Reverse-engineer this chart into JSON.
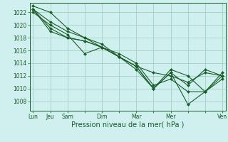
{
  "bg_color": "#cff0ee",
  "plot_bg_color": "#cff0ee",
  "grid_color": "#99ccbb",
  "line_color": "#1a5c2a",
  "marker_color": "#1a5c2a",
  "xlabel": "Pression niveau de la mer( hPa )",
  "xlabel_fontsize": 7,
  "yticks": [
    1008,
    1010,
    1012,
    1014,
    1016,
    1018,
    1020,
    1022
  ],
  "ylim": [
    1006.5,
    1023.5
  ],
  "xtick_labels": [
    "Lun",
    "Jeu",
    "Sam",
    "",
    "Dim",
    "",
    "Mar",
    "",
    "Mer",
    "",
    "",
    "Ven"
  ],
  "xtick_positions": [
    0,
    1,
    2,
    3,
    4,
    5,
    6,
    7,
    8,
    9,
    10,
    11
  ],
  "series": [
    [
      1023.0,
      1022.0,
      1019.5,
      1018.0,
      1016.5,
      1015.0,
      1013.5,
      1012.5,
      1012.0,
      1011.0,
      1012.5,
      1012.0
    ],
    [
      1022.5,
      1020.5,
      1019.0,
      1018.0,
      1017.0,
      1015.0,
      1013.0,
      1010.0,
      1012.5,
      1010.5,
      1013.0,
      1012.0
    ],
    [
      1022.0,
      1020.0,
      1018.5,
      1015.5,
      1016.5,
      1015.0,
      1013.5,
      1010.0,
      1012.5,
      1007.5,
      1009.5,
      1011.5
    ],
    [
      1022.5,
      1019.0,
      1018.0,
      1017.5,
      1016.5,
      1015.0,
      1013.5,
      1010.0,
      1013.0,
      1012.0,
      1009.5,
      1012.0
    ],
    [
      1022.5,
      1019.5,
      1018.0,
      1017.5,
      1016.5,
      1015.5,
      1014.0,
      1010.5,
      1011.5,
      1009.5,
      1009.5,
      1012.5
    ]
  ]
}
